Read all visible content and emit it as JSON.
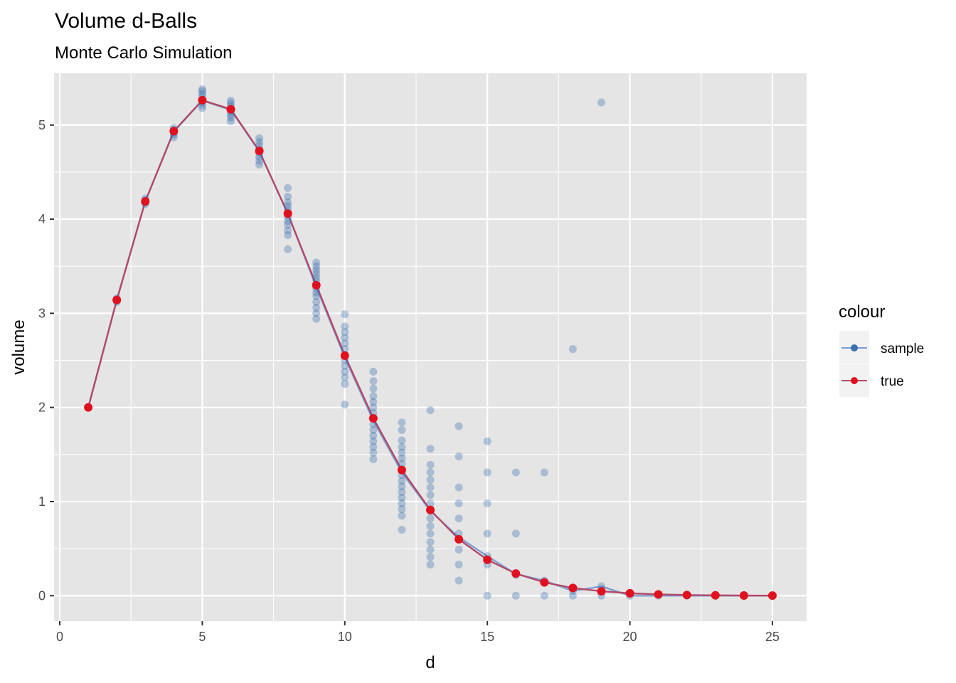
{
  "chart_data": {
    "type": "scatter",
    "title": "Volume d-Balls",
    "subtitle": "Monte Carlo Simulation",
    "xlabel": "d",
    "ylabel": "volume",
    "xlim": [
      -0.2,
      26.2
    ],
    "ylim": [
      -0.27,
      5.55
    ],
    "xticks": [
      0,
      5,
      10,
      15,
      20,
      25
    ],
    "yticks": [
      0,
      1,
      2,
      3,
      4,
      5
    ],
    "grid": true,
    "legend": {
      "title": "colour",
      "placement": "right",
      "entries": [
        {
          "label": "sample",
          "color": "#3a6fb0"
        },
        {
          "label": "true",
          "color": "#e0101f"
        }
      ]
    },
    "colors": {
      "panel_bg": "#e5e5e5",
      "grid": "#ffffff",
      "sample": "#3a6fb0",
      "sample_line": "#7c9fcf",
      "true": "#e0101f",
      "true_line": "#b3496a"
    },
    "series": [
      {
        "name": "true",
        "x": [
          1,
          2,
          3,
          4,
          5,
          6,
          7,
          8,
          9,
          10,
          11,
          12,
          13,
          14,
          15,
          16,
          17,
          18,
          19,
          20,
          21,
          22,
          23,
          24,
          25
        ],
        "y": [
          2.0,
          3.1416,
          4.1888,
          4.9348,
          5.2638,
          5.1677,
          4.7248,
          4.0587,
          3.2985,
          2.5502,
          1.8841,
          1.3353,
          0.9106,
          0.5993,
          0.3814,
          0.2353,
          0.141,
          0.0821,
          0.0466,
          0.0258,
          0.0139,
          0.0073,
          0.0038,
          0.0019,
          0.0009
        ]
      },
      {
        "name": "sample",
        "x": [
          1,
          2,
          3,
          4,
          5,
          6,
          7,
          8,
          9,
          10,
          11,
          12,
          13,
          14,
          15,
          16,
          17,
          18,
          19,
          20,
          21,
          22,
          23,
          24,
          25
        ],
        "y": [
          2.0,
          3.14,
          4.19,
          4.93,
          5.26,
          5.16,
          4.72,
          4.06,
          3.28,
          2.53,
          1.86,
          1.31,
          0.9,
          0.62,
          0.42,
          0.23,
          0.16,
          0.05,
          0.1,
          0.0,
          0.0,
          0.0,
          0.0,
          0.0,
          0.0
        ],
        "points": [
          {
            "x": 1,
            "y": [
              2.0
            ]
          },
          {
            "x": 2,
            "y": [
              3.12,
              3.14,
              3.16
            ]
          },
          {
            "x": 3,
            "y": [
              4.16,
              4.18,
              4.2,
              4.22
            ]
          },
          {
            "x": 4,
            "y": [
              4.87,
              4.9,
              4.92,
              4.95,
              4.97
            ]
          },
          {
            "x": 5,
            "y": [
              5.18,
              5.21,
              5.24,
              5.27,
              5.3,
              5.33,
              5.36,
              5.38
            ]
          },
          {
            "x": 6,
            "y": [
              5.04,
              5.08,
              5.11,
              5.14,
              5.17,
              5.2,
              5.23,
              5.26
            ]
          },
          {
            "x": 7,
            "y": [
              4.58,
              4.62,
              4.66,
              4.7,
              4.74,
              4.78,
              4.82,
              4.86
            ]
          },
          {
            "x": 8,
            "y": [
              3.68,
              3.83,
              3.88,
              3.94,
              3.98,
              4.02,
              4.06,
              4.1,
              4.14,
              4.18,
              4.24,
              4.33
            ]
          },
          {
            "x": 9,
            "y": [
              2.94,
              3.0,
              3.06,
              3.12,
              3.18,
              3.22,
              3.26,
              3.3,
              3.34,
              3.38,
              3.42,
              3.46,
              3.5,
              3.54
            ]
          },
          {
            "x": 10,
            "y": [
              2.03,
              2.25,
              2.32,
              2.38,
              2.44,
              2.5,
              2.56,
              2.62,
              2.68,
              2.74,
              2.8,
              2.86,
              2.99
            ]
          },
          {
            "x": 11,
            "y": [
              1.45,
              1.52,
              1.58,
              1.64,
              1.7,
              1.76,
              1.82,
              1.88,
              1.94,
              2.0,
              2.06,
              2.12,
              2.2,
              2.28,
              2.38
            ]
          },
          {
            "x": 12,
            "y": [
              0.7,
              0.85,
              0.92,
              0.98,
              1.04,
              1.1,
              1.16,
              1.22,
              1.28,
              1.34,
              1.4,
              1.46,
              1.52,
              1.58,
              1.65,
              1.76,
              1.84
            ]
          },
          {
            "x": 13,
            "y": [
              0.33,
              0.41,
              0.49,
              0.57,
              0.66,
              0.74,
              0.82,
              0.9,
              0.98,
              1.07,
              1.15,
              1.23,
              1.31,
              1.39,
              1.56,
              1.97
            ]
          },
          {
            "x": 14,
            "y": [
              0.16,
              0.33,
              0.49,
              0.66,
              0.82,
              0.98,
              1.15,
              1.48,
              1.8
            ]
          },
          {
            "x": 15,
            "y": [
              0.0,
              0.33,
              0.42,
              0.66,
              0.98,
              1.31,
              1.64
            ]
          },
          {
            "x": 16,
            "y": [
              0.0,
              0.22,
              0.66,
              1.31
            ]
          },
          {
            "x": 17,
            "y": [
              0.0,
              0.16,
              1.31
            ]
          },
          {
            "x": 18,
            "y": [
              0.0,
              0.05,
              2.62
            ]
          },
          {
            "x": 19,
            "y": [
              0.0,
              0.1,
              5.24
            ]
          },
          {
            "x": 20,
            "y": [
              0.0
            ]
          },
          {
            "x": 21,
            "y": [
              0.0
            ]
          },
          {
            "x": 22,
            "y": [
              0.0
            ]
          },
          {
            "x": 23,
            "y": [
              0.0
            ]
          },
          {
            "x": 24,
            "y": [
              0.0
            ]
          },
          {
            "x": 25,
            "y": [
              0.0
            ]
          }
        ]
      }
    ]
  }
}
